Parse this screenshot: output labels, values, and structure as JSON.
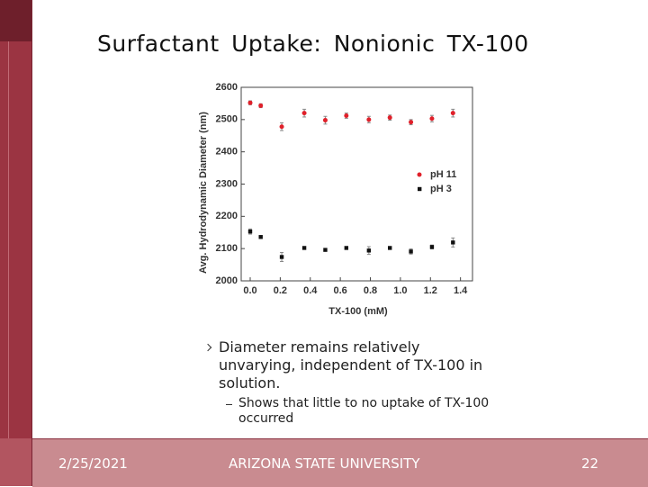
{
  "slide_title": "Surfactant Uptake: Nonionic TX-100",
  "chart_data": {
    "type": "scatter",
    "xlabel": "TX-100 (mM)",
    "ylabel": "Avg. Hydrodynamic Diameter (nm)",
    "xlim": [
      -0.06,
      1.48
    ],
    "ylim": [
      2000,
      2600
    ],
    "xticks": [
      {
        "value": 0,
        "label": "0.0"
      },
      0.2,
      0.4,
      0.6,
      0.8,
      {
        "value": 1,
        "label": "1.0"
      },
      1.2,
      1.4
    ],
    "yticks": [
      2000,
      2100,
      2200,
      2300,
      2400,
      2500,
      2600
    ],
    "legend": "upper right",
    "x": [
      0,
      0.07,
      0.21,
      0.36,
      0.5,
      0.64,
      0.79,
      0.93,
      1.07,
      1.21,
      1.35
    ],
    "series": [
      {
        "name": "pH 11",
        "color": "#e0202a",
        "marker": "circle",
        "values": [
          2552,
          2543,
          2478,
          2520,
          2498,
          2512,
          2500,
          2506,
          2492,
          2503,
          2520
        ],
        "errors": [
          6,
          6,
          12,
          12,
          12,
          8,
          10,
          8,
          8,
          10,
          12
        ]
      },
      {
        "name": "pH 3",
        "color": "#111111",
        "marker": "square",
        "values": [
          2153,
          2136,
          2074,
          2102,
          2096,
          2102,
          2094,
          2102,
          2091,
          2105,
          2119
        ],
        "errors": [
          8,
          4,
          14,
          4,
          4,
          4,
          12,
          4,
          8,
          6,
          14
        ]
      }
    ]
  },
  "bullets": [
    {
      "text": "Diameter remains relatively unvarying, independent of TX-100 in solution.",
      "sub": [
        "Shows that little to no uptake of TX-100 occurred"
      ]
    }
  ],
  "footer": {
    "date": "2/25/2021",
    "org": "ARIZONA STATE UNIVERSITY",
    "page": "22"
  }
}
